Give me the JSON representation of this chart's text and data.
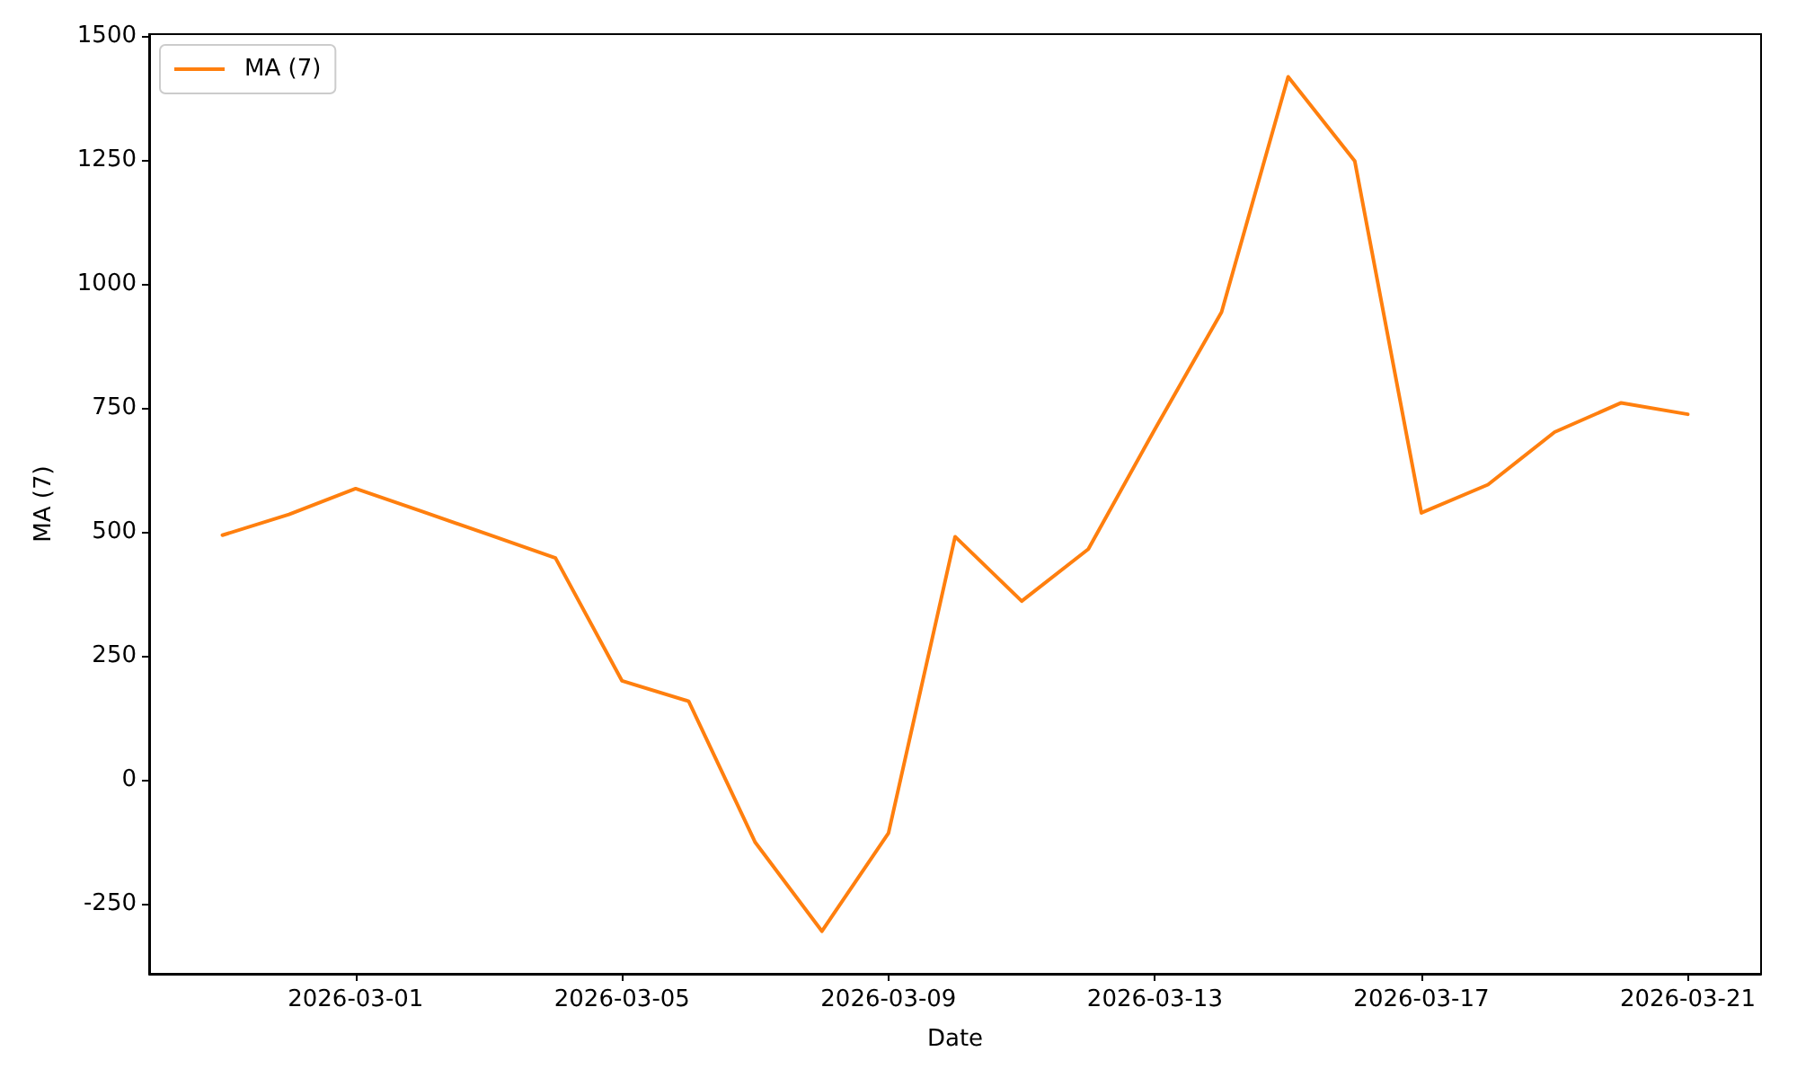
{
  "chart_data": {
    "type": "line",
    "xlabel": "Date",
    "ylabel": "MA (7)",
    "x": [
      "2026-02-27",
      "2026-02-28",
      "2026-03-01",
      "2026-03-02",
      "2026-03-03",
      "2026-03-04",
      "2026-03-05",
      "2026-03-06",
      "2026-03-07",
      "2026-03-08",
      "2026-03-09",
      "2026-03-10",
      "2026-03-11",
      "2026-03-12",
      "2026-03-13",
      "2026-03-14",
      "2026-03-15",
      "2026-03-16",
      "2026-03-17",
      "2026-03-18",
      "2026-03-19",
      "2026-03-20",
      "2026-03-21"
    ],
    "series": [
      {
        "name": "MA (7)",
        "color": "#ff7f0e",
        "values": [
          493,
          535,
          587,
          541,
          494,
          447,
          199,
          158,
          -127,
          -306,
          -108,
          490,
          360,
          465,
          707,
          943,
          1418,
          1248,
          538,
          595,
          701,
          760,
          737
        ]
      }
    ],
    "xlim": [
      "2026-02-25T21:36",
      "2026-03-22T02:24"
    ],
    "ylim": [
      -392,
      1504
    ],
    "xticks": [
      "2026-03-01",
      "2026-03-05",
      "2026-03-09",
      "2026-03-13",
      "2026-03-17",
      "2026-03-21"
    ],
    "yticks": [
      -250,
      0,
      250,
      500,
      750,
      1000,
      1250,
      1500
    ],
    "legend": "top left"
  }
}
